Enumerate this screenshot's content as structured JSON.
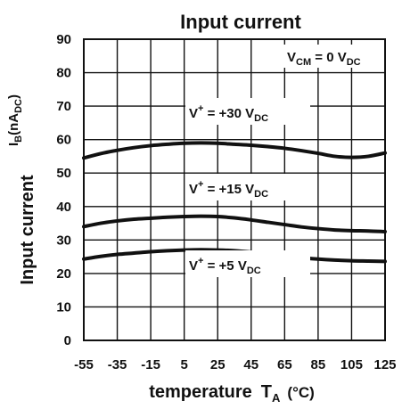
{
  "chart_data": {
    "type": "line",
    "title": "Input current",
    "ylabel": "Input current",
    "ylabel_units": {
      "symbol": "I",
      "symbol_sub": "B",
      "paren_open": "(",
      "unit": "nA",
      "unit_sub": "DC",
      "paren_close": ")"
    },
    "xlabel": {
      "text": "temperature",
      "symbol": "T",
      "symbol_sub": "A",
      "unit": "(°C)"
    },
    "xlim": [
      -55,
      125
    ],
    "ylim": [
      0,
      90
    ],
    "x_ticks": [
      "-55",
      "-35",
      "-15",
      "5",
      "25",
      "45",
      "65",
      "85",
      "105",
      "125"
    ],
    "y_ticks": [
      "0",
      "10",
      "20",
      "30",
      "40",
      "50",
      "60",
      "70",
      "80",
      "90"
    ],
    "grid": true,
    "condition": {
      "main": "V",
      "main_sub": "CM",
      "rest": " = 0 V",
      "rest_sub": "DC"
    },
    "x": [
      -55,
      -45,
      -35,
      -25,
      -15,
      -5,
      5,
      15,
      25,
      35,
      45,
      55,
      65,
      75,
      85,
      95,
      105,
      115,
      125
    ],
    "series": [
      {
        "label": {
          "main": "V",
          "sup": "+",
          "rest": " = +30 V",
          "rest_sub": "DC"
        },
        "color": "#111111",
        "values": [
          54.5,
          55.8,
          56.8,
          57.6,
          58.2,
          58.6,
          58.9,
          59.0,
          58.9,
          58.6,
          58.3,
          57.9,
          57.4,
          56.7,
          55.9,
          55.0,
          54.7,
          55.0,
          56.0
        ]
      },
      {
        "label": {
          "main": "V",
          "sup": "+",
          "rest": " = +15 V",
          "rest_sub": "DC"
        },
        "color": "#111111",
        "values": [
          34.0,
          35.0,
          35.7,
          36.2,
          36.5,
          36.8,
          37.0,
          37.1,
          37.0,
          36.6,
          36.0,
          35.3,
          34.6,
          33.9,
          33.4,
          33.0,
          32.8,
          32.7,
          32.5
        ]
      },
      {
        "label": {
          "main": "V",
          "sup": "+",
          "rest": " = +5 V",
          "rest_sub": "DC"
        },
        "color": "#111111",
        "values": [
          24.3,
          25.1,
          25.7,
          26.1,
          26.5,
          26.8,
          27.0,
          27.1,
          27.0,
          26.8,
          26.4,
          25.9,
          25.3,
          24.7,
          24.3,
          24.0,
          23.8,
          23.7,
          23.6
        ]
      }
    ],
    "line_color": "#111111",
    "grid_color": "#111111",
    "background": "#ffffff"
  }
}
